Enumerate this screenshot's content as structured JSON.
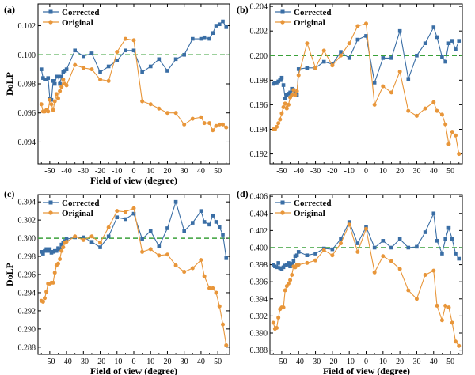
{
  "colors": {
    "corrected": "#3a6ea5",
    "original": "#e8963a",
    "reference": "#3aa13a",
    "axis": "#000000"
  },
  "chart_data": [
    {
      "type": "line",
      "panel_label": "(a)",
      "xlabel": "Field of view (degree)",
      "ylabel": "DoLP",
      "xlim": [
        -57,
        57
      ],
      "ylim": [
        0.0925,
        0.1035
      ],
      "xticks": [
        -50,
        -40,
        -30,
        -20,
        -10,
        0,
        10,
        20,
        30,
        40,
        50
      ],
      "yticks": [
        0.094,
        0.096,
        0.098,
        0.1,
        0.102
      ],
      "ytick_labels": [
        "0.094",
        "0.096",
        "0.098",
        "0.100",
        "0.102"
      ],
      "reference_line": 0.1,
      "legend": "top-left",
      "series": [
        {
          "name": "Corrected",
          "color_key": "corrected",
          "marker": "square",
          "x": [
            -55,
            -54,
            -53,
            -52,
            -51,
            -50,
            -49,
            -48,
            -47,
            -46,
            -45,
            -44,
            -43,
            -42,
            -41,
            -40,
            -35,
            -30,
            -25,
            -20,
            -15,
            -10,
            -5,
            0,
            5,
            10,
            15,
            20,
            25,
            30,
            35,
            40,
            42,
            45,
            47,
            49,
            51,
            53,
            55
          ],
          "y": [
            0.099,
            0.0984,
            0.0983,
            0.0983,
            0.0984,
            0.097,
            0.0969,
            0.0982,
            0.098,
            0.0985,
            0.0985,
            0.098,
            0.0985,
            0.0988,
            0.0989,
            0.099,
            0.1003,
            0.0999,
            0.1001,
            0.0988,
            0.0992,
            0.0996,
            0.1003,
            0.1003,
            0.0988,
            0.0992,
            0.0997,
            0.0989,
            0.0997,
            0.1,
            0.1011,
            0.1011,
            0.1012,
            0.1011,
            0.1015,
            0.102,
            0.1021,
            0.1023,
            0.1019
          ]
        },
        {
          "name": "Original",
          "color_key": "original",
          "marker": "circle",
          "x": [
            -55,
            -54,
            -53,
            -52,
            -51,
            -50,
            -49,
            -48,
            -47,
            -46,
            -45,
            -44,
            -43,
            -42,
            -41,
            -40,
            -35,
            -30,
            -25,
            -20,
            -15,
            -10,
            -5,
            0,
            5,
            10,
            15,
            20,
            25,
            30,
            35,
            40,
            42,
            45,
            47,
            49,
            51,
            53,
            55
          ],
          "y": [
            0.0966,
            0.0961,
            0.0961,
            0.0962,
            0.0961,
            0.0969,
            0.0966,
            0.0962,
            0.0968,
            0.0973,
            0.097,
            0.0975,
            0.0978,
            0.0983,
            0.098,
            0.0979,
            0.0993,
            0.0991,
            0.099,
            0.0983,
            0.0982,
            0.1002,
            0.1011,
            0.101,
            0.0968,
            0.0966,
            0.0963,
            0.096,
            0.096,
            0.0952,
            0.0956,
            0.0957,
            0.0953,
            0.0953,
            0.0948,
            0.0951,
            0.0952,
            0.0952,
            0.095
          ]
        }
      ]
    },
    {
      "type": "line",
      "panel_label": "(b)",
      "xlabel": "",
      "ylabel": "",
      "xlim": [
        -57,
        57
      ],
      "ylim": [
        0.1912,
        0.2042
      ],
      "xticks": [
        -50,
        -40,
        -30,
        -20,
        -10,
        0,
        10,
        20,
        30,
        40,
        50
      ],
      "yticks": [
        0.192,
        0.194,
        0.196,
        0.198,
        0.2,
        0.202,
        0.204
      ],
      "ytick_labels": [
        "0.192",
        "0.194",
        "0.196",
        "0.198",
        "0.200",
        "0.202",
        "0.204"
      ],
      "reference_line": 0.2,
      "legend": "top-left",
      "series": [
        {
          "name": "Corrected",
          "color_key": "corrected",
          "marker": "square",
          "x": [
            -55,
            -54,
            -53,
            -52,
            -51,
            -50,
            -49,
            -48,
            -47,
            -46,
            -45,
            -44,
            -43,
            -42,
            -41,
            -40,
            -35,
            -30,
            -25,
            -20,
            -15,
            -10,
            -5,
            0,
            5,
            10,
            15,
            20,
            25,
            30,
            35,
            40,
            42,
            45,
            47,
            49,
            51,
            53,
            55
          ],
          "y": [
            0.1977,
            0.1978,
            0.1978,
            0.1979,
            0.198,
            0.1982,
            0.1976,
            0.1965,
            0.1968,
            0.1969,
            0.197,
            0.1973,
            0.1972,
            0.197,
            0.1968,
            0.1989,
            0.199,
            0.199,
            0.1995,
            0.1993,
            0.2003,
            0.1998,
            0.2013,
            0.2016,
            0.1978,
            0.1998,
            0.1998,
            0.202,
            0.1981,
            0.2,
            0.201,
            0.2023,
            0.2015,
            0.1999,
            0.1995,
            0.201,
            0.2012,
            0.2005,
            0.2012
          ]
        },
        {
          "name": "Original",
          "color_key": "original",
          "marker": "circle",
          "x": [
            -55,
            -54,
            -53,
            -52,
            -51,
            -50,
            -49,
            -48,
            -47,
            -46,
            -45,
            -44,
            -43,
            -42,
            -41,
            -40,
            -35,
            -30,
            -25,
            -20,
            -15,
            -10,
            -5,
            0,
            5,
            10,
            15,
            20,
            25,
            30,
            35,
            40,
            42,
            45,
            47,
            49,
            51,
            53,
            55
          ],
          "y": [
            0.194,
            0.194,
            0.1942,
            0.1945,
            0.1948,
            0.1953,
            0.1958,
            0.1961,
            0.1957,
            0.196,
            0.1966,
            0.1968,
            0.1972,
            0.1968,
            0.1971,
            0.1984,
            0.201,
            0.199,
            0.2004,
            0.1992,
            0.2,
            0.201,
            0.2024,
            0.2026,
            0.196,
            0.1975,
            0.197,
            0.1987,
            0.1955,
            0.1951,
            0.1957,
            0.1962,
            0.1955,
            0.1952,
            0.1944,
            0.1928,
            0.1938,
            0.1935,
            0.192
          ]
        }
      ]
    },
    {
      "type": "line",
      "panel_label": "(c)",
      "xlabel": "Field of view (degree)",
      "ylabel": "DoLP",
      "xlim": [
        -57,
        57
      ],
      "ylim": [
        0.2872,
        0.3048
      ],
      "xticks": [
        -50,
        -40,
        -30,
        -20,
        -10,
        0,
        10,
        20,
        30,
        40,
        50
      ],
      "yticks": [
        0.288,
        0.29,
        0.292,
        0.294,
        0.296,
        0.298,
        0.3,
        0.302,
        0.304
      ],
      "ytick_labels": [
        "0.288",
        "0.290",
        "0.292",
        "0.294",
        "0.296",
        "0.298",
        "0.300",
        "0.302",
        "0.304"
      ],
      "reference_line": 0.3,
      "legend": "top-left",
      "series": [
        {
          "name": "Corrected",
          "color_key": "corrected",
          "marker": "square",
          "x": [
            -55,
            -54,
            -53,
            -52,
            -51,
            -50,
            -49,
            -48,
            -47,
            -46,
            -45,
            -44,
            -43,
            -42,
            -41,
            -40,
            -35,
            -30,
            -25,
            -20,
            -15,
            -10,
            -5,
            0,
            5,
            10,
            15,
            20,
            25,
            30,
            35,
            40,
            42,
            45,
            47,
            49,
            51,
            53,
            55
          ],
          "y": [
            0.2985,
            0.2983,
            0.2986,
            0.2988,
            0.2986,
            0.2988,
            0.2984,
            0.2985,
            0.2986,
            0.2986,
            0.2989,
            0.2988,
            0.2993,
            0.2995,
            0.2997,
            0.2999,
            0.3001,
            0.3001,
            0.2996,
            0.299,
            0.3002,
            0.3023,
            0.3021,
            0.3027,
            0.2999,
            0.3008,
            0.2991,
            0.3011,
            0.304,
            0.3008,
            0.3017,
            0.303,
            0.3018,
            0.3015,
            0.3025,
            0.3018,
            0.3012,
            0.3004,
            0.2978
          ]
        },
        {
          "name": "Original",
          "color_key": "original",
          "marker": "circle",
          "x": [
            -55,
            -54,
            -53,
            -52,
            -51,
            -50,
            -49,
            -48,
            -47,
            -46,
            -45,
            -44,
            -43,
            -42,
            -41,
            -40,
            -35,
            -30,
            -25,
            -20,
            -15,
            -10,
            -5,
            0,
            5,
            10,
            15,
            20,
            25,
            30,
            35,
            40,
            42,
            45,
            47,
            49,
            51,
            53,
            55
          ],
          "y": [
            0.2931,
            0.293,
            0.2934,
            0.2941,
            0.295,
            0.295,
            0.2951,
            0.2951,
            0.2962,
            0.297,
            0.2972,
            0.2977,
            0.2986,
            0.299,
            0.2995,
            0.2996,
            0.3002,
            0.2998,
            0.3002,
            0.2995,
            0.3012,
            0.303,
            0.3029,
            0.3033,
            0.2985,
            0.2988,
            0.2981,
            0.2982,
            0.297,
            0.2963,
            0.2967,
            0.2976,
            0.2958,
            0.2945,
            0.2945,
            0.294,
            0.2925,
            0.2905,
            0.2882
          ]
        }
      ]
    },
    {
      "type": "line",
      "panel_label": "(d)",
      "xlabel": "Field of view (degree)",
      "ylabel": "",
      "xlim": [
        -57,
        57
      ],
      "ylim": [
        0.3875,
        0.4062
      ],
      "xticks": [
        -50,
        -40,
        -30,
        -20,
        -10,
        0,
        10,
        20,
        30,
        40,
        50
      ],
      "yticks": [
        0.388,
        0.39,
        0.392,
        0.394,
        0.396,
        0.398,
        0.4,
        0.402,
        0.404,
        0.406
      ],
      "ytick_labels": [
        "0.388",
        "0.390",
        "0.392",
        "0.394",
        "0.396",
        "0.398",
        "0.400",
        "0.402",
        "0.404",
        "0.406"
      ],
      "reference_line": 0.4,
      "legend": "top-left",
      "series": [
        {
          "name": "Corrected",
          "color_key": "corrected",
          "marker": "square",
          "x": [
            -55,
            -54,
            -53,
            -52,
            -51,
            -50,
            -49,
            -48,
            -47,
            -46,
            -45,
            -44,
            -43,
            -42,
            -41,
            -40,
            -35,
            -30,
            -25,
            -20,
            -15,
            -10,
            -5,
            0,
            5,
            10,
            15,
            20,
            25,
            30,
            35,
            40,
            42,
            45,
            47,
            49,
            51,
            53,
            55
          ],
          "y": [
            0.398,
            0.3978,
            0.3977,
            0.3982,
            0.3976,
            0.3975,
            0.3977,
            0.3979,
            0.398,
            0.3982,
            0.3978,
            0.3981,
            0.3984,
            0.399,
            0.3991,
            0.3995,
            0.3991,
            0.3993,
            0.3999,
            0.3998,
            0.401,
            0.403,
            0.4005,
            0.4024,
            0.4,
            0.4008,
            0.4,
            0.401,
            0.4,
            0.4001,
            0.4018,
            0.404,
            0.4008,
            0.3993,
            0.401,
            0.4023,
            0.401,
            0.3993,
            0.3987
          ]
        },
        {
          "name": "Original",
          "color_key": "original",
          "marker": "circle",
          "x": [
            -55,
            -54,
            -53,
            -52,
            -51,
            -50,
            -49,
            -48,
            -47,
            -46,
            -45,
            -44,
            -43,
            -42,
            -41,
            -40,
            -35,
            -30,
            -25,
            -20,
            -15,
            -10,
            -5,
            0,
            5,
            10,
            15,
            20,
            25,
            30,
            35,
            40,
            42,
            45,
            47,
            49,
            51,
            53,
            55
          ],
          "y": [
            0.3912,
            0.3905,
            0.3906,
            0.3918,
            0.3928,
            0.393,
            0.393,
            0.395,
            0.3955,
            0.3958,
            0.3962,
            0.3968,
            0.3978,
            0.3977,
            0.398,
            0.398,
            0.3982,
            0.3985,
            0.3997,
            0.3991,
            0.4005,
            0.4027,
            0.3995,
            0.4022,
            0.3971,
            0.399,
            0.3984,
            0.3975,
            0.395,
            0.394,
            0.3968,
            0.3973,
            0.3932,
            0.3915,
            0.3932,
            0.393,
            0.3912,
            0.389,
            0.3885
          ]
        }
      ]
    }
  ]
}
